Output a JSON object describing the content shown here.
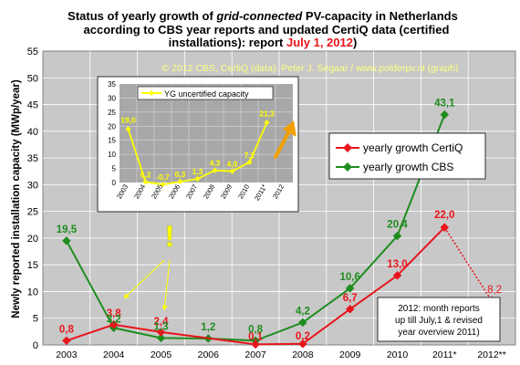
{
  "title": {
    "line1_a": "Status of yearly growth of ",
    "line1_b": "grid-connected",
    "line1_c": " PV-capacity in Netherlands",
    "line2": "according to CBS year reports and updated CertiQ data (certified",
    "line3_a": "installations): report ",
    "line3_b": "July 1, 2012",
    "line3_c": ")"
  },
  "copyright": "© 2012 CBS, CertiQ (data). Peter J. Segaar / www.polderpv.nl (graph)",
  "note": [
    "2012: month reports",
    "up till July,1 & revised",
    "year overview 2011)"
  ],
  "exclaim": "!",
  "colors": {
    "plot_bg": "#c8c8c8",
    "certiq": "#e8141c",
    "cbs": "#1e8c1e",
    "inset_bg": "#a8a8a8",
    "inset_line": "#ffff00",
    "title_red": "#e8141c",
    "copyright": "#ffff80"
  },
  "chart_data": [
    {
      "type": "line",
      "ylabel": "Newly reported installation capacity (MWp/year)",
      "ylim": [
        0,
        55
      ],
      "yticks": [
        0,
        5,
        10,
        15,
        20,
        25,
        30,
        35,
        40,
        45,
        50,
        55
      ],
      "categories": [
        "2003",
        "2004",
        "2005",
        "2006",
        "2007",
        "2008",
        "2009",
        "2010",
        "2011*",
        "2012**"
      ],
      "grid": true,
      "legend_position": "right",
      "series": [
        {
          "name": "yearly growth CertiQ",
          "values": [
            0.8,
            3.8,
            2.4,
            null,
            0.1,
            0.2,
            6.7,
            13.0,
            22.0,
            null
          ],
          "labels": [
            "0,8",
            "3,8",
            "2,4",
            "",
            "0,1",
            "0,2",
            "6,7",
            "13,0",
            "22,0",
            ""
          ]
        },
        {
          "name": "yearly growth CBS",
          "values": [
            19.5,
            3.2,
            1.3,
            1.2,
            0.8,
            4.2,
            10.6,
            20.4,
            43.1,
            null
          ],
          "labels": [
            "19,5",
            "3,2",
            "1,3",
            "1,2",
            "0,8",
            "4,2",
            "10,6",
            "20,4",
            "43,1",
            ""
          ]
        }
      ],
      "projection": {
        "value": 8.2,
        "label": "8,2"
      }
    },
    {
      "type": "line",
      "ylim": [
        0,
        35
      ],
      "yticks": [
        0,
        5,
        10,
        15,
        20,
        25,
        30,
        35
      ],
      "categories": [
        "2003",
        "2004",
        "2005",
        "2006",
        "2007",
        "2008",
        "2009",
        "2010",
        "2011*",
        "2012"
      ],
      "grid": true,
      "legend_position": "top-left",
      "series": [
        {
          "name": "YG uncertified capacity",
          "values": [
            19.0,
            0.2,
            -0.7,
            0.3,
            1.3,
            4.3,
            4.0,
            7.2,
            21.3,
            null
          ],
          "labels": [
            "19,0",
            "0,2",
            "-0,7",
            "0,3",
            "1,3",
            "4,3",
            "4,0",
            "7,2",
            "21,3",
            ""
          ]
        }
      ]
    }
  ]
}
